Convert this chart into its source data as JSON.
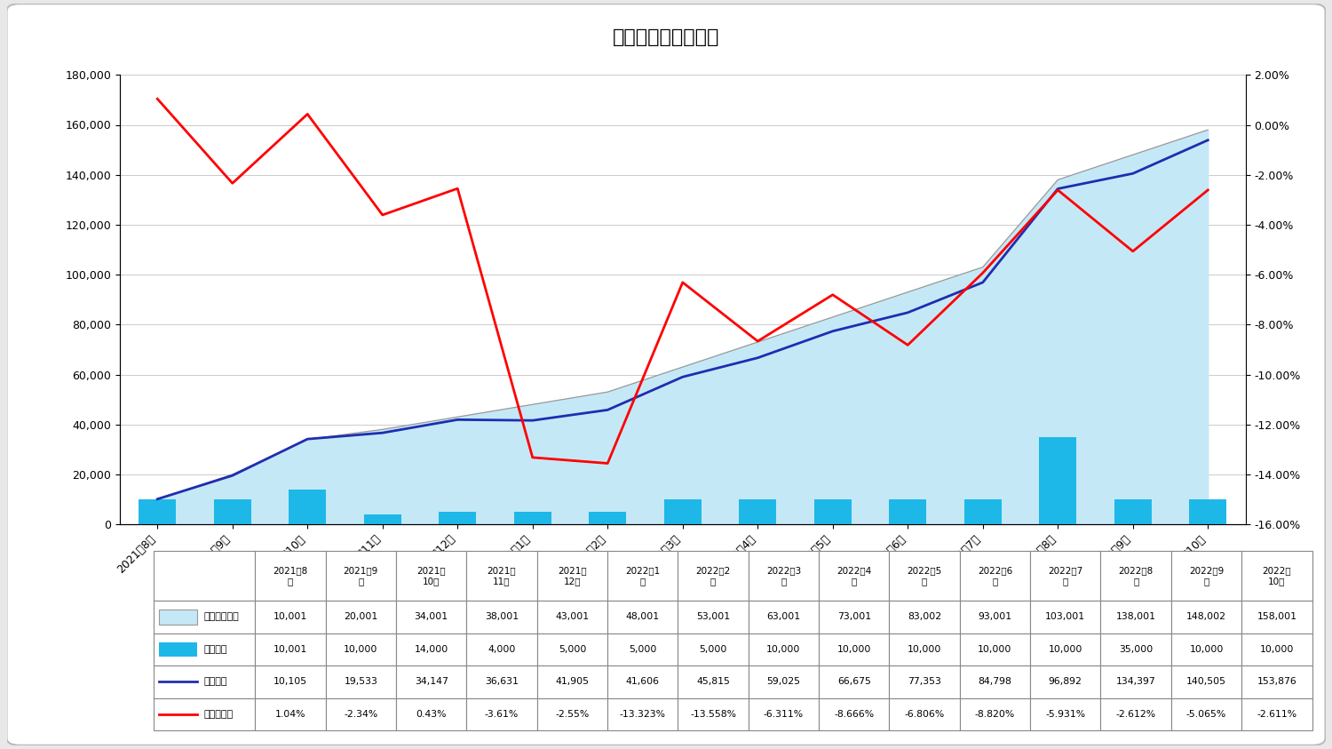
{
  "title": "ひふみ投信運用実績",
  "months": [
    "2021年8月",
    "2021年9月",
    "2021年10月",
    "2021年11月",
    "2021年12月",
    "2022年1月",
    "2022年2月",
    "2022年3月",
    "2022年4月",
    "2022年5月",
    "2022年6月",
    "2022年7月",
    "2022年8月",
    "2022年9月",
    "2022年10月"
  ],
  "months_header": [
    "2021年8\n月",
    "2021年9\n月",
    "2021年\n10月",
    "2021年\n11月",
    "2021年\n12月",
    "2022年1\n月",
    "2022年2\n月",
    "2022年3\n月",
    "2022年4\n月",
    "2022年5\n月",
    "2022年6\n月",
    "2022年7\n月",
    "2022年8\n月",
    "2022年9\n月",
    "2022年\n10月"
  ],
  "cumulative_investment": [
    10001,
    20001,
    34001,
    38001,
    43001,
    48001,
    53001,
    63001,
    73001,
    83002,
    93001,
    103001,
    138001,
    148002,
    158001
  ],
  "monthly_investment": [
    10001,
    10000,
    14000,
    4000,
    5000,
    5000,
    5000,
    10000,
    10000,
    10000,
    10000,
    10000,
    35000,
    10000,
    10000
  ],
  "evaluation": [
    10105,
    19533,
    34147,
    36631,
    41905,
    41606,
    45815,
    59025,
    66675,
    77353,
    84798,
    96892,
    134397,
    140505,
    153876
  ],
  "profit_rate": [
    0.0104,
    -0.0234,
    0.0043,
    -0.0361,
    -0.0255,
    -0.13323,
    -0.13558,
    -0.06311,
    -0.08666,
    -0.06806,
    -0.0882,
    -0.05931,
    -0.02612,
    -0.05065,
    -0.02611
  ],
  "profit_rate_labels": [
    "1.04%",
    "-2.34%",
    "0.43%",
    "-3.61%",
    "-2.55%",
    "-13.323%",
    "-13.558%",
    "-6.311%",
    "-8.666%",
    "-6.806%",
    "-8.820%",
    "-5.931%",
    "-2.612%",
    "-5.065%",
    "-2.611%"
  ],
  "bar_color": "#1EB8E8",
  "area_color": "#C5E8F7",
  "line_color_blue": "#1F2DB0",
  "line_color_red": "#FF0000",
  "area_edge_color": "#999999",
  "ylim_left": [
    0,
    180000
  ],
  "ylim_right": [
    -0.16,
    0.02
  ],
  "yticks_left": [
    0,
    20000,
    40000,
    60000,
    80000,
    100000,
    120000,
    140000,
    160000,
    180000
  ],
  "yticks_right": [
    0.02,
    0.0,
    -0.02,
    -0.04,
    -0.06,
    -0.08,
    -0.1,
    -0.12,
    -0.14,
    -0.16
  ],
  "background_color": "#FFFFFF",
  "grid_color": "#CCCCCC",
  "outer_bg": "#E8E8E8"
}
